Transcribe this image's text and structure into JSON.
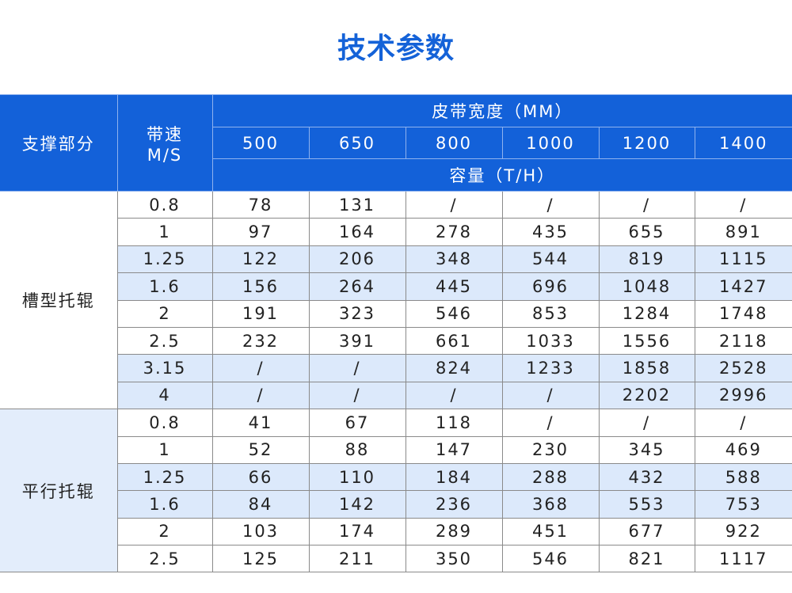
{
  "title": "技术参数",
  "header": {
    "support": "支撑部分",
    "speed_line1": "带速",
    "speed_line2": "M/S",
    "belt_width": "皮带宽度（MM）",
    "widths": [
      "500",
      "650",
      "800",
      "1000",
      "1200",
      "1400"
    ],
    "capacity": "容量（T/H）"
  },
  "colors": {
    "header_bg": "#1361d9",
    "title": "#1462d8",
    "highlight_row": "#dce9fb"
  },
  "groups": [
    {
      "name": "槽型托辊",
      "rows": [
        {
          "speed": "0.8",
          "values": [
            "78",
            "131",
            "/",
            "/",
            "/",
            "/"
          ],
          "highlighted": false
        },
        {
          "speed": "1",
          "values": [
            "97",
            "164",
            "278",
            "435",
            "655",
            "891"
          ],
          "highlighted": false
        },
        {
          "speed": "1.25",
          "values": [
            "122",
            "206",
            "348",
            "544",
            "819",
            "1115"
          ],
          "highlighted": true
        },
        {
          "speed": "1.6",
          "values": [
            "156",
            "264",
            "445",
            "696",
            "1048",
            "1427"
          ],
          "highlighted": true
        },
        {
          "speed": "2",
          "values": [
            "191",
            "323",
            "546",
            "853",
            "1284",
            "1748"
          ],
          "highlighted": false
        },
        {
          "speed": "2.5",
          "values": [
            "232",
            "391",
            "661",
            "1033",
            "1556",
            "2118"
          ],
          "highlighted": false
        },
        {
          "speed": "3.15",
          "values": [
            "/",
            "/",
            "824",
            "1233",
            "1858",
            "2528"
          ],
          "highlighted": true
        },
        {
          "speed": "4",
          "values": [
            "/",
            "/",
            "/",
            "/",
            "2202",
            "2996"
          ],
          "highlighted": true
        }
      ]
    },
    {
      "name": "平行托辊",
      "rows": [
        {
          "speed": "0.8",
          "values": [
            "41",
            "67",
            "118",
            "/",
            "/",
            "/"
          ],
          "highlighted": false
        },
        {
          "speed": "1",
          "values": [
            "52",
            "88",
            "147",
            "230",
            "345",
            "469"
          ],
          "highlighted": false
        },
        {
          "speed": "1.25",
          "values": [
            "66",
            "110",
            "184",
            "288",
            "432",
            "588"
          ],
          "highlighted": true
        },
        {
          "speed": "1.6",
          "values": [
            "84",
            "142",
            "236",
            "368",
            "553",
            "753"
          ],
          "highlighted": true
        },
        {
          "speed": "2",
          "values": [
            "103",
            "174",
            "289",
            "451",
            "677",
            "922"
          ],
          "highlighted": false
        },
        {
          "speed": "2.5",
          "values": [
            "125",
            "211",
            "350",
            "546",
            "821",
            "1117"
          ],
          "highlighted": false
        }
      ]
    }
  ]
}
